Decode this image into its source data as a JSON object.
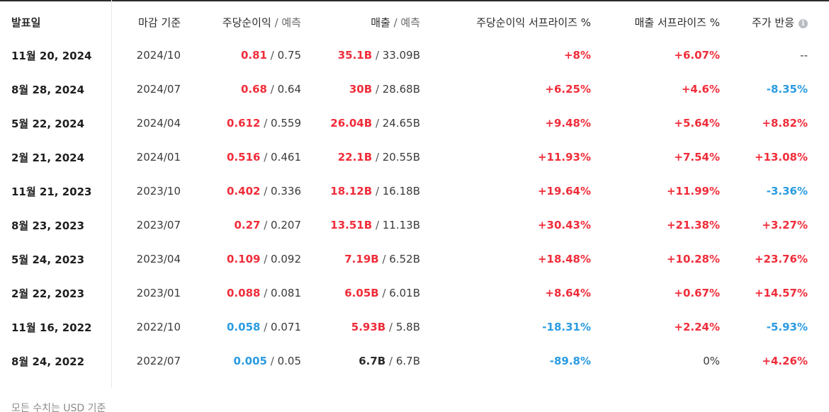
{
  "table": {
    "headers": {
      "date": "발표일",
      "period": "마감 기준",
      "eps_main": "주당순이익",
      "eps_sub": " / 예측",
      "rev_main": "매출",
      "rev_sub": " / 예측",
      "eps_surprise": "주당순이익 서프라이즈 %",
      "rev_surprise": "매출 서프라이즈 %",
      "reaction": "주가 반응",
      "info_icon": "info-icon"
    },
    "slash": " / ",
    "rows": [
      {
        "date": "11월 20, 2024",
        "period": "2024/10",
        "eps": "0.81",
        "eps_tone": "up",
        "eps_est": "0.75",
        "rev": "35.1B",
        "rev_tone": "up",
        "rev_est": "33.09B",
        "eps_surprise": "+8%",
        "eps_surprise_tone": "up",
        "rev_surprise": "+6.07%",
        "rev_surprise_tone": "up",
        "reaction": "--",
        "reaction_tone": "flat"
      },
      {
        "date": "8월 28, 2024",
        "period": "2024/07",
        "eps": "0.68",
        "eps_tone": "up",
        "eps_est": "0.64",
        "rev": "30B",
        "rev_tone": "up",
        "rev_est": "28.68B",
        "eps_surprise": "+6.25%",
        "eps_surprise_tone": "up",
        "rev_surprise": "+4.6%",
        "rev_surprise_tone": "up",
        "reaction": "-8.35%",
        "reaction_tone": "down"
      },
      {
        "date": "5월 22, 2024",
        "period": "2024/04",
        "eps": "0.612",
        "eps_tone": "up",
        "eps_est": "0.559",
        "rev": "26.04B",
        "rev_tone": "up",
        "rev_est": "24.65B",
        "eps_surprise": "+9.48%",
        "eps_surprise_tone": "up",
        "rev_surprise": "+5.64%",
        "rev_surprise_tone": "up",
        "reaction": "+8.82%",
        "reaction_tone": "up"
      },
      {
        "date": "2월 21, 2024",
        "period": "2024/01",
        "eps": "0.516",
        "eps_tone": "up",
        "eps_est": "0.461",
        "rev": "22.1B",
        "rev_tone": "up",
        "rev_est": "20.55B",
        "eps_surprise": "+11.93%",
        "eps_surprise_tone": "up",
        "rev_surprise": "+7.54%",
        "rev_surprise_tone": "up",
        "reaction": "+13.08%",
        "reaction_tone": "up"
      },
      {
        "date": "11월 21, 2023",
        "period": "2023/10",
        "eps": "0.402",
        "eps_tone": "up",
        "eps_est": "0.336",
        "rev": "18.12B",
        "rev_tone": "up",
        "rev_est": "16.18B",
        "eps_surprise": "+19.64%",
        "eps_surprise_tone": "up",
        "rev_surprise": "+11.99%",
        "rev_surprise_tone": "up",
        "reaction": "-3.36%",
        "reaction_tone": "down"
      },
      {
        "date": "8월 23, 2023",
        "period": "2023/07",
        "eps": "0.27",
        "eps_tone": "up",
        "eps_est": "0.207",
        "rev": "13.51B",
        "rev_tone": "up",
        "rev_est": "11.13B",
        "eps_surprise": "+30.43%",
        "eps_surprise_tone": "up",
        "rev_surprise": "+21.38%",
        "rev_surprise_tone": "up",
        "reaction": "+3.27%",
        "reaction_tone": "up"
      },
      {
        "date": "5월 24, 2023",
        "period": "2023/04",
        "eps": "0.109",
        "eps_tone": "up",
        "eps_est": "0.092",
        "rev": "7.19B",
        "rev_tone": "up",
        "rev_est": "6.52B",
        "eps_surprise": "+18.48%",
        "eps_surprise_tone": "up",
        "rev_surprise": "+10.28%",
        "rev_surprise_tone": "up",
        "reaction": "+23.76%",
        "reaction_tone": "up"
      },
      {
        "date": "2월 22, 2023",
        "period": "2023/01",
        "eps": "0.088",
        "eps_tone": "up",
        "eps_est": "0.081",
        "rev": "6.05B",
        "rev_tone": "up",
        "rev_est": "6.01B",
        "eps_surprise": "+8.64%",
        "eps_surprise_tone": "up",
        "rev_surprise": "+0.67%",
        "rev_surprise_tone": "up",
        "reaction": "+14.57%",
        "reaction_tone": "up"
      },
      {
        "date": "11월 16, 2022",
        "period": "2022/10",
        "eps": "0.058",
        "eps_tone": "down",
        "eps_est": "0.071",
        "rev": "5.93B",
        "rev_tone": "up",
        "rev_est": "5.8B",
        "eps_surprise": "-18.31%",
        "eps_surprise_tone": "down",
        "rev_surprise": "+2.24%",
        "rev_surprise_tone": "up",
        "reaction": "-5.93%",
        "reaction_tone": "down"
      },
      {
        "date": "8월 24, 2022",
        "period": "2022/07",
        "eps": "0.005",
        "eps_tone": "down",
        "eps_est": "0.05",
        "rev": "6.7B",
        "rev_tone": "same",
        "rev_est": "6.7B",
        "eps_surprise": "-89.8%",
        "eps_surprise_tone": "down",
        "rev_surprise": "0%",
        "rev_surprise_tone": "flat",
        "reaction": "+4.26%",
        "reaction_tone": "up"
      }
    ]
  },
  "footnote": "모든 수치는 USD 기준",
  "colors": {
    "up": "#f02d3a",
    "down": "#2a9be0",
    "same": "#2a2a2a",
    "flat": "#3a3a3a"
  }
}
